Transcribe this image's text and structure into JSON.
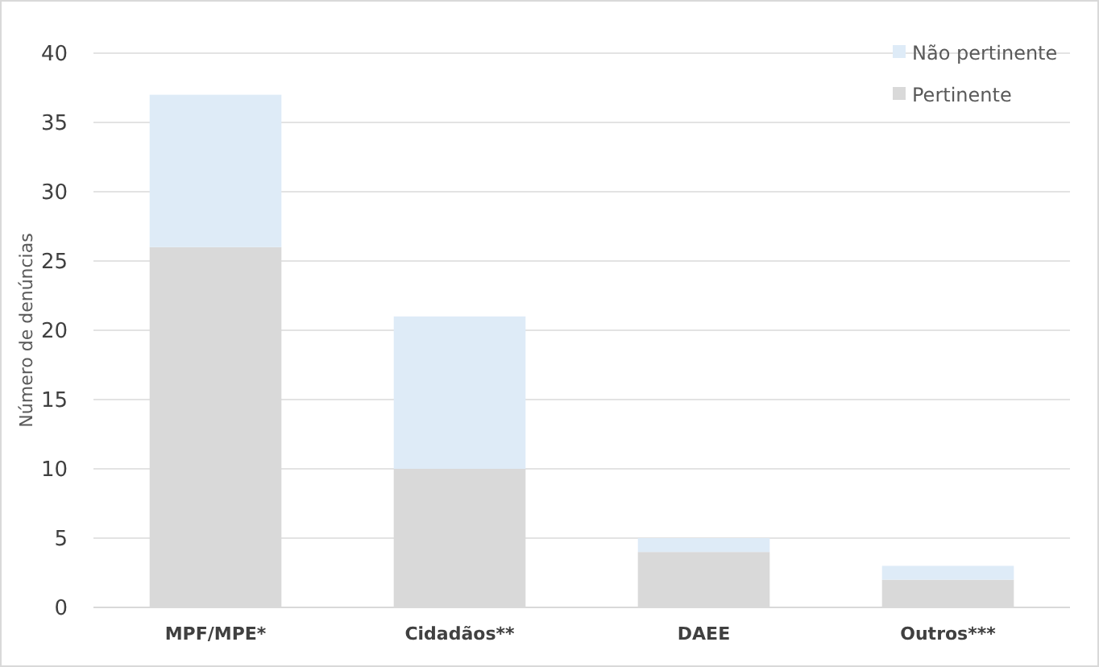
{
  "chart_data": {
    "type": "bar",
    "stacked": true,
    "ylabel": "Número de denúncias",
    "categories": [
      "MPF/MPE*",
      "Cidadãos**",
      "DAEE",
      "Outros***"
    ],
    "series": [
      {
        "name": "Pertinente",
        "color": "#d9d9d9",
        "values": [
          26,
          10,
          4,
          2
        ]
      },
      {
        "name": "Não pertinente",
        "color": "#deebf7",
        "values": [
          11,
          11,
          1,
          1
        ]
      }
    ],
    "ylim": [
      0,
      40
    ],
    "yticks": [
      0,
      5,
      10,
      15,
      20,
      25,
      30,
      35,
      40
    ],
    "grid": "y",
    "legend": "top right"
  }
}
